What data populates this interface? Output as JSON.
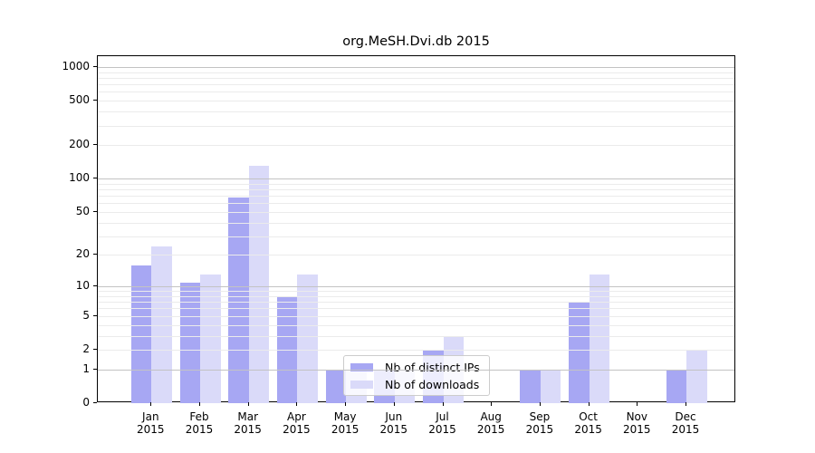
{
  "title": "org.MeSH.Dvi.db 2015",
  "colors": {
    "distinct_ips_bar": "#a7a7f3",
    "downloads_bar": "#dadaf9",
    "grid_major": "#c3c3c3",
    "grid_minor": "#ebebeb",
    "axis": "#000000",
    "legend_border": "#cccccc"
  },
  "legend": {
    "items": [
      {
        "label": "Nb of distinct IPs",
        "series": "distinct_ips"
      },
      {
        "label": "Nb of downloads",
        "series": "downloads"
      }
    ]
  },
  "chart_data": {
    "type": "bar",
    "title": "org.MeSH.Dvi.db 2015",
    "categories": [
      "Jan 2015",
      "Feb 2015",
      "Mar 2015",
      "Apr 2015",
      "May 2015",
      "Jun 2015",
      "Jul 2015",
      "Aug 2015",
      "Sep 2015",
      "Oct 2015",
      "Nov 2015",
      "Dec 2015"
    ],
    "x_tick_months": [
      "Jan",
      "Feb",
      "Mar",
      "Apr",
      "May",
      "Jun",
      "Jul",
      "Aug",
      "Sep",
      "Oct",
      "Nov",
      "Dec"
    ],
    "x_tick_year": "2015",
    "series": [
      {
        "name": "Nb of distinct IPs",
        "color": "#a7a7f3",
        "values": [
          16,
          11,
          67,
          8,
          1,
          1,
          2,
          0,
          1,
          7,
          0,
          1
        ]
      },
      {
        "name": "Nb of downloads",
        "color": "#dadaf9",
        "values": [
          24,
          13,
          130,
          13,
          1,
          1,
          3,
          0,
          1,
          13,
          0,
          2
        ]
      }
    ],
    "xlabel": "",
    "ylabel": "",
    "y_axis": {
      "scale": "log10(1+x)",
      "ylim": [
        0,
        1250
      ],
      "ticks": [
        1000,
        500,
        200,
        100,
        50,
        20,
        10,
        5,
        2,
        1,
        0
      ],
      "major_gridlines": [
        1,
        10,
        100,
        1000
      ],
      "minor_gridlines": [
        2,
        3,
        4,
        5,
        6,
        7,
        8,
        9,
        20,
        30,
        40,
        50,
        60,
        70,
        80,
        90,
        200,
        300,
        400,
        500,
        600,
        700,
        800,
        900
      ]
    },
    "grid": true,
    "legend_position": "lower center-left inside plot",
    "legend_labels": [
      "Nb of distinct IPs",
      "Nb of downloads"
    ]
  }
}
